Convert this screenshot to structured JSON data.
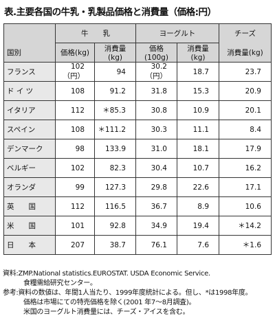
{
  "title": "表.主要各国の牛乳・乳製品価格と消費量（価格:円）",
  "table": {
    "groups": [
      "牛　　乳",
      "ヨーグルト",
      "チーズ"
    ],
    "corner": "国別",
    "subheaders": [
      "価格(kg)",
      "消費量(kg)",
      "価格(100g)",
      "消費量(kg)",
      "消費量(kg)"
    ],
    "rows": [
      [
        "フランス",
        "102（円）",
        "94",
        "30.2（円）",
        "18.7",
        "23.7"
      ],
      [
        "ド イ ツ",
        "108",
        "91.2",
        "31.8",
        "15.3",
        "20.9"
      ],
      [
        "イタリア",
        "112",
        "＊85.3",
        "30.8",
        "10.9",
        "20.1"
      ],
      [
        "スペイン",
        "108",
        "＊111.2",
        "30.3",
        "11.1",
        "8.4"
      ],
      [
        "デンマーク",
        "98",
        "133.9",
        "31.0",
        "18.1",
        "17.9"
      ],
      [
        "ベルギー",
        "102",
        "82.3",
        "30.4",
        "10.7",
        "16.2"
      ],
      [
        "オランダ",
        "99",
        "127.3",
        "29.8",
        "22.6",
        "17.1"
      ],
      [
        "英　　国",
        "112",
        "116.5",
        "36.7",
        "8.9",
        "10.6"
      ],
      [
        "米　　国",
        "101",
        "92.8",
        "34.9",
        "19.4",
        "＊14.2"
      ],
      [
        "日　　本",
        "207",
        "38.7",
        "76.1",
        "7.6",
        "＊1.6"
      ]
    ]
  },
  "notes": [
    "資料:ZMP.National statistics.EUROSTAT. USDA Economic Service.",
    "食糧需給研究センター。",
    "参考:資料の数値は、年間1人当たり、1999年度統計による。但し、*は1998年度。",
    "価格は市場にての特売価格を除く(2001 年7〜8月調査)。",
    "米国のヨーグルト消費量には、チーズ・アイスを含む。"
  ]
}
